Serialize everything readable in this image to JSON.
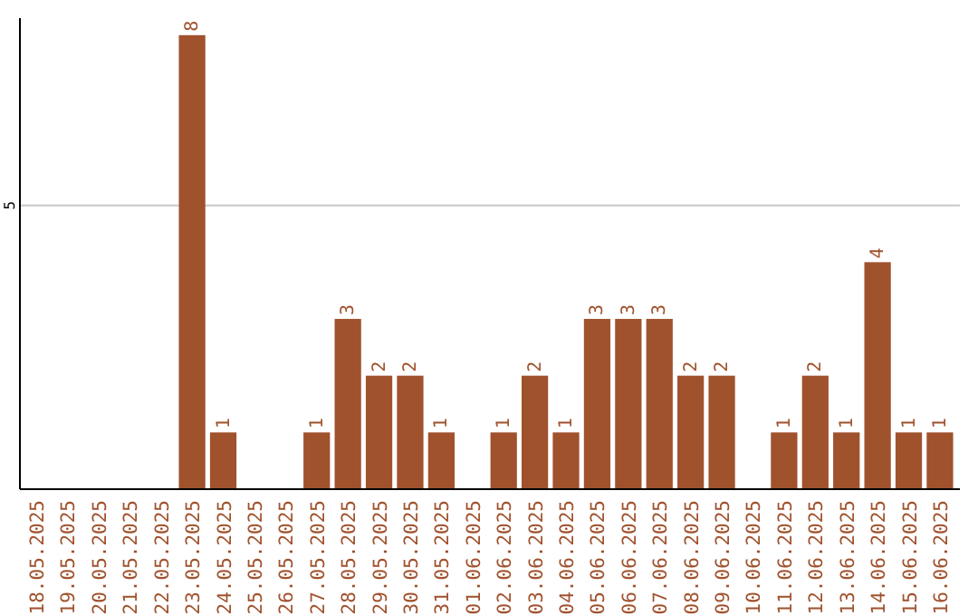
{
  "chart_data": {
    "type": "bar",
    "categories": [
      "18.05.2025",
      "19.05.2025",
      "20.05.2025",
      "21.05.2025",
      "22.05.2025",
      "23.05.2025",
      "24.05.2025",
      "25.05.2025",
      "26.05.2025",
      "27.05.2025",
      "28.05.2025",
      "29.05.2025",
      "30.05.2025",
      "31.05.2025",
      "01.06.2025",
      "02.06.2025",
      "03.06.2025",
      "04.06.2025",
      "05.06.2025",
      "06.06.2025",
      "07.06.2025",
      "08.06.2025",
      "09.06.2025",
      "10.06.2025",
      "11.06.2025",
      "12.06.2025",
      "13.06.2025",
      "14.06.2025",
      "15.06.2025",
      "16.06.2025"
    ],
    "values": [
      0,
      0,
      0,
      0,
      0,
      8,
      1,
      0,
      0,
      1,
      3,
      2,
      2,
      1,
      0,
      1,
      2,
      1,
      3,
      3,
      3,
      2,
      2,
      0,
      1,
      2,
      1,
      4,
      1,
      1
    ],
    "value_labels": [
      null,
      null,
      null,
      null,
      null,
      "8",
      "1",
      null,
      null,
      "1",
      "3",
      "2",
      "2",
      "1",
      null,
      "1",
      "2",
      "1",
      "3",
      "3",
      "3",
      "2",
      "2",
      null,
      "1",
      "2",
      "1",
      "4",
      "1",
      "1"
    ],
    "color": "#a0522d",
    "ylim": [
      0,
      8.3
    ],
    "yticks": [
      5
    ],
    "grid": "y"
  }
}
